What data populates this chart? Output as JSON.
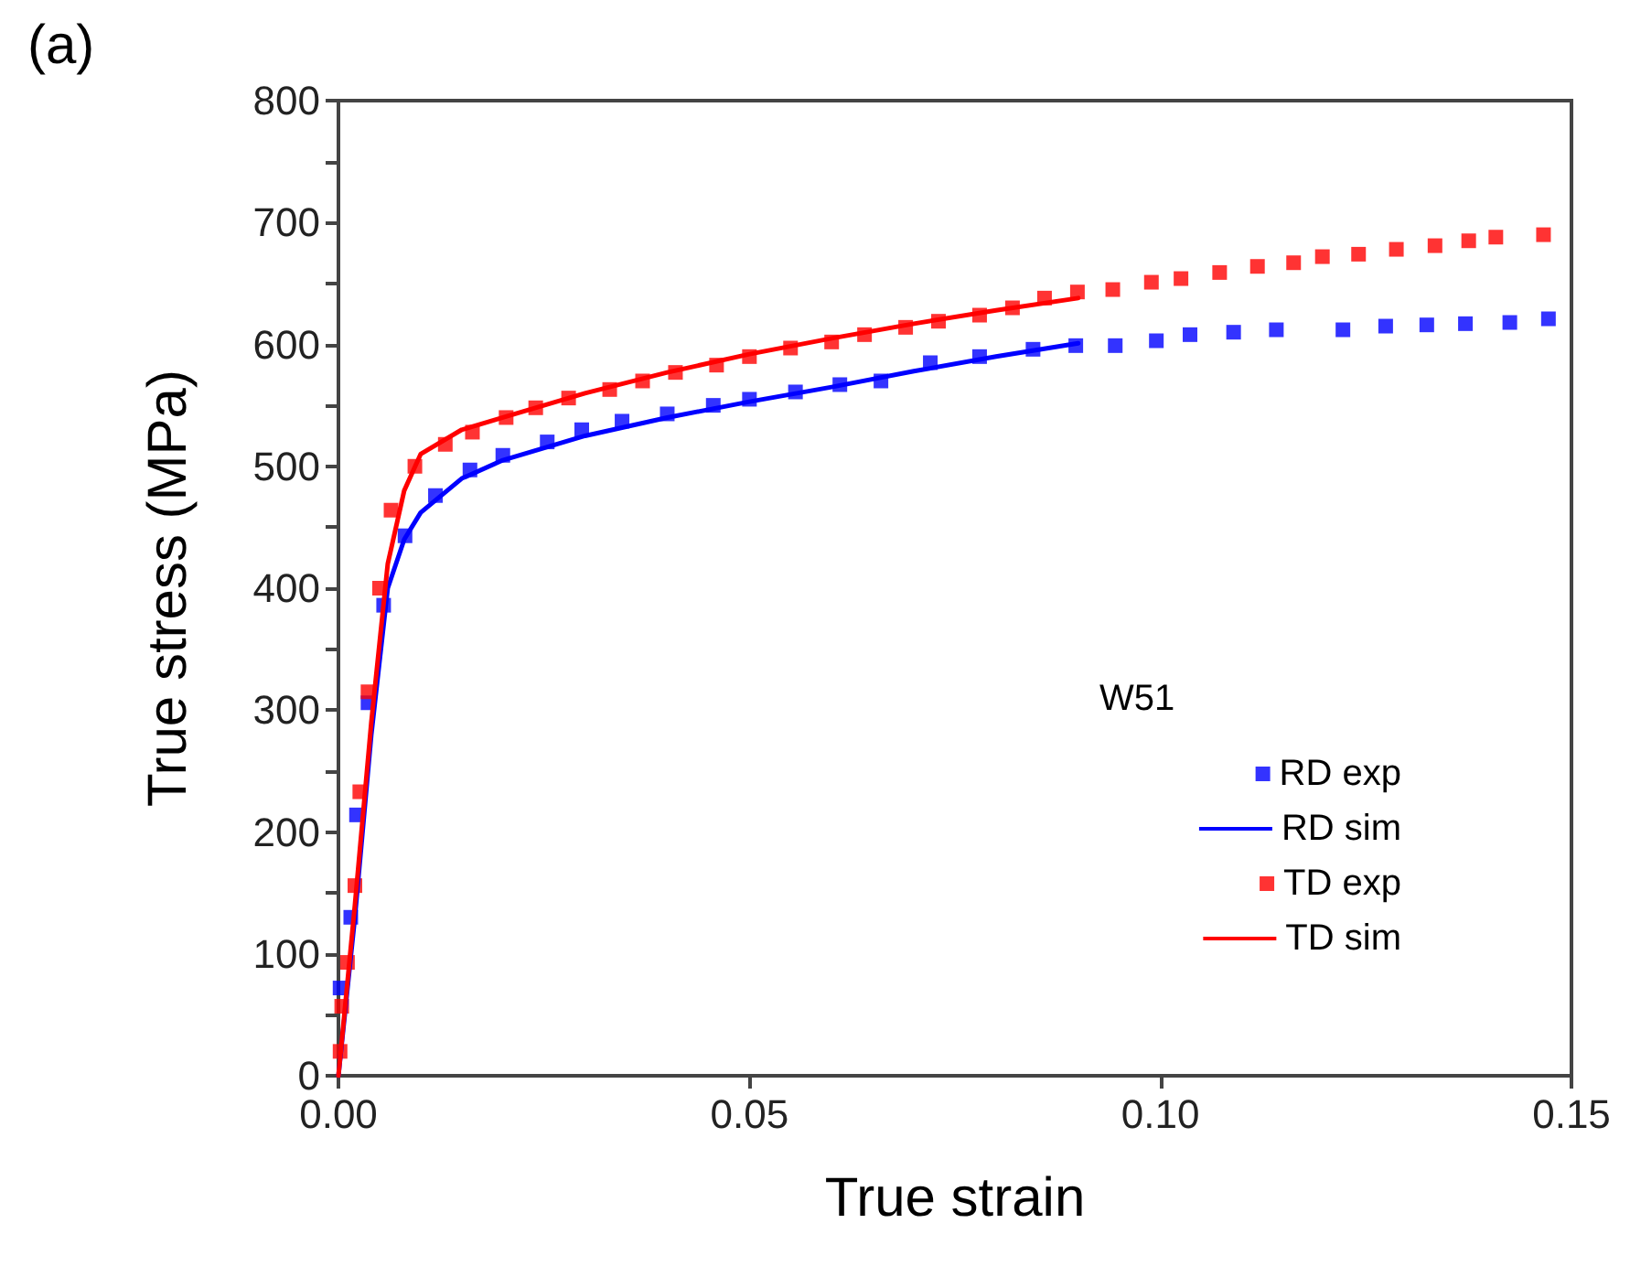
{
  "chart_data": {
    "type": "line",
    "xlabel": "True strain",
    "ylabel": "True stress (MPa)",
    "legend_title": "W51",
    "annotations": [
      "(a)"
    ],
    "xlim": [
      0,
      0.15
    ],
    "ylim": [
      0,
      800
    ],
    "xticks": [
      {
        "value": 0,
        "label": "0.00"
      },
      {
        "value": 0.05,
        "label": "0.05"
      },
      {
        "value": 0.1,
        "label": "0.10"
      },
      {
        "value": 0.15,
        "label": "0.15"
      }
    ],
    "yticks": [
      0,
      {
        "value": 50,
        "label": null
      },
      100,
      {
        "value": 150,
        "label": null
      },
      200,
      {
        "value": 250,
        "label": null
      },
      300,
      {
        "value": 350,
        "label": null
      },
      400,
      {
        "value": 450,
        "label": null
      },
      500,
      {
        "value": 550,
        "label": null
      },
      600,
      {
        "value": 650,
        "label": null
      },
      700,
      {
        "value": 750,
        "label": null
      },
      800
    ],
    "grid": false,
    "legend": "bottom right",
    "series": [
      {
        "name": "RD exp",
        "type": "scatter",
        "marker": "square",
        "color": "#0000ff",
        "x": [
          0.0002,
          0.0015,
          0.0022,
          0.0036,
          0.0055,
          0.0081,
          0.0118,
          0.016,
          0.02,
          0.0254,
          0.0296,
          0.0345,
          0.04,
          0.0456,
          0.05,
          0.0556,
          0.061,
          0.066,
          0.072,
          0.078,
          0.0845,
          0.0897,
          0.0945,
          0.0995,
          0.1036,
          0.1089,
          0.1141,
          0.1222,
          0.1274,
          0.1324,
          0.1371,
          0.1425,
          0.1472
        ],
        "values": [
          72,
          130,
          214,
          306,
          386,
          443,
          476,
          497,
          509,
          520,
          530,
          537,
          543,
          550,
          555,
          561,
          567,
          570,
          585,
          590,
          596,
          599,
          599,
          603,
          608,
          610,
          612,
          612,
          615,
          616,
          617,
          618,
          621
        ]
      },
      {
        "name": "RD sim",
        "type": "line",
        "marker": "none",
        "color": "#0000ff",
        "x": [
          0,
          0.002,
          0.004,
          0.006,
          0.008,
          0.01,
          0.015,
          0.02,
          0.03,
          0.04,
          0.05,
          0.06,
          0.07,
          0.08,
          0.09
        ],
        "values": [
          0,
          130,
          280,
          400,
          440,
          462,
          490,
          505,
          525,
          540,
          553,
          565,
          578,
          590,
          601
        ]
      },
      {
        "name": "TD exp",
        "type": "scatter",
        "marker": "square",
        "color": "#ff0000",
        "x": [
          0.0002,
          0.0004,
          0.0011,
          0.002,
          0.0026,
          0.0036,
          0.005,
          0.0064,
          0.0093,
          0.013,
          0.0163,
          0.0204,
          0.024,
          0.028,
          0.033,
          0.037,
          0.041,
          0.046,
          0.05,
          0.055,
          0.06,
          0.064,
          0.069,
          0.073,
          0.078,
          0.082,
          0.0859,
          0.0899,
          0.0942,
          0.0989,
          0.1025,
          0.1072,
          0.1118,
          0.1162,
          0.1197,
          0.1241,
          0.1287,
          0.1334,
          0.1375,
          0.1408,
          0.1466
        ],
        "values": [
          20,
          57,
          93,
          156,
          233,
          315,
          400,
          464,
          500,
          518,
          528,
          540,
          548,
          556,
          563,
          570,
          577,
          583,
          590,
          597,
          602,
          608,
          614,
          619,
          624,
          630,
          638,
          643,
          645,
          651,
          654,
          659,
          664,
          667,
          672,
          674,
          678,
          681,
          685,
          688,
          690
        ]
      },
      {
        "name": "TD sim",
        "type": "line",
        "marker": "none",
        "color": "#ff0000",
        "x": [
          0,
          0.002,
          0.004,
          0.006,
          0.008,
          0.01,
          0.015,
          0.02,
          0.03,
          0.04,
          0.05,
          0.06,
          0.07,
          0.08,
          0.09
        ],
        "values": [
          0,
          140,
          290,
          420,
          480,
          510,
          530,
          540,
          560,
          577,
          592,
          605,
          617,
          628,
          638
        ]
      }
    ]
  }
}
